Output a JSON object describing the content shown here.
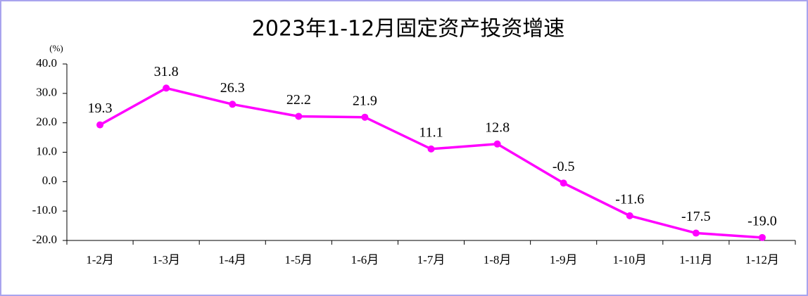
{
  "chart_data": {
    "type": "line",
    "title": "2023年1-12月固定资产投资增速",
    "y_unit": "(%)",
    "categories": [
      "1-2月",
      "1-3月",
      "1-4月",
      "1-5月",
      "1-6月",
      "1-7月",
      "1-8月",
      "1-9月",
      "1-10月",
      "1-11月",
      "1-12月"
    ],
    "series": [
      {
        "name": "固定资产投资增速",
        "color": "#ff00ff",
        "values": [
          19.3,
          31.8,
          26.3,
          22.2,
          21.9,
          11.1,
          12.8,
          -0.5,
          -11.6,
          -17.5,
          -19.0
        ],
        "value_labels": [
          "19.3",
          "31.8",
          "26.3",
          "22.2",
          "21.9",
          "11.1",
          "12.8",
          "-0.5",
          "-11.6",
          "-17.5",
          "-19.0"
        ]
      }
    ],
    "ylim": [
      -20,
      40
    ],
    "yticks": [
      {
        "value": 40,
        "label": "40.0"
      },
      {
        "value": 30,
        "label": "30.0"
      },
      {
        "value": 20,
        "label": "20.0"
      },
      {
        "value": 10,
        "label": "10.0"
      },
      {
        "value": 0,
        "label": "0.0"
      },
      {
        "value": -10,
        "label": "-10.0"
      },
      {
        "value": -20,
        "label": "-20.0"
      }
    ]
  }
}
